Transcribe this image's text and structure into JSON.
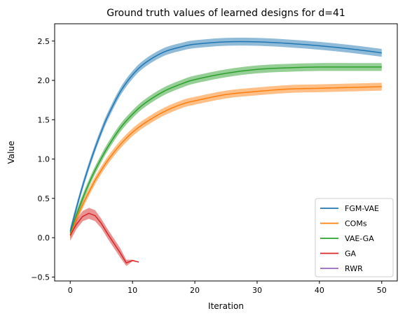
{
  "chart_data": {
    "type": "line",
    "title": "Ground truth values of learned designs for d=41",
    "xlabel": "Iteration",
    "ylabel": "Value",
    "xlim": [
      -2.5,
      52.5
    ],
    "ylim": [
      -0.55,
      2.72
    ],
    "xticks": [
      0,
      10,
      20,
      30,
      40,
      50
    ],
    "yticks": [
      -0.5,
      0.0,
      0.5,
      1.0,
      1.5,
      2.0,
      2.5
    ],
    "ytick_labels": [
      "−0.5",
      "0.0",
      "0.5",
      "1.0",
      "1.5",
      "2.0",
      "2.5"
    ],
    "legend_position": "lower-right",
    "grid": false,
    "series": [
      {
        "name": "FGM-VAE",
        "color": "#1f77b4",
        "x": [
          0,
          1,
          2,
          3,
          4,
          5,
          6,
          8,
          10,
          12,
          15,
          18,
          20,
          25,
          30,
          35,
          40,
          45,
          50
        ],
        "values": [
          0.08,
          0.38,
          0.66,
          0.91,
          1.14,
          1.35,
          1.54,
          1.85,
          2.07,
          2.22,
          2.36,
          2.43,
          2.46,
          2.49,
          2.49,
          2.47,
          2.44,
          2.4,
          2.35
        ],
        "band": 0.05
      },
      {
        "name": "COMs",
        "color": "#ff7f0e",
        "x": [
          0,
          1,
          2,
          3,
          4,
          5,
          6,
          8,
          10,
          12,
          15,
          18,
          20,
          25,
          30,
          35,
          40,
          45,
          50
        ],
        "values": [
          0.04,
          0.24,
          0.42,
          0.58,
          0.73,
          0.86,
          0.98,
          1.18,
          1.34,
          1.46,
          1.6,
          1.7,
          1.74,
          1.82,
          1.86,
          1.89,
          1.9,
          1.91,
          1.92
        ],
        "band": 0.05
      },
      {
        "name": "VAE-GA",
        "color": "#2ca02c",
        "x": [
          0,
          1,
          2,
          3,
          4,
          5,
          6,
          8,
          10,
          12,
          15,
          18,
          20,
          25,
          30,
          35,
          40,
          45,
          50
        ],
        "values": [
          0.06,
          0.29,
          0.5,
          0.69,
          0.86,
          1.01,
          1.15,
          1.39,
          1.57,
          1.71,
          1.86,
          1.96,
          2.01,
          2.09,
          2.14,
          2.16,
          2.17,
          2.17,
          2.17
        ],
        "band": 0.05
      },
      {
        "name": "GA",
        "color": "#d62728",
        "x": [
          0,
          1,
          2,
          3,
          4,
          5,
          6,
          7,
          8,
          9,
          10,
          11
        ],
        "values": [
          0.03,
          0.17,
          0.27,
          0.31,
          0.28,
          0.18,
          0.05,
          -0.07,
          -0.19,
          -0.32,
          -0.29,
          -0.31
        ],
        "band_upper": [
          0.1,
          0.23,
          0.34,
          0.38,
          0.35,
          0.24,
          0.11,
          -0.01,
          -0.13,
          -0.28,
          -0.28,
          -0.31
        ],
        "band_lower": [
          -0.04,
          0.11,
          0.21,
          0.24,
          0.21,
          0.12,
          -0.01,
          -0.13,
          -0.25,
          -0.36,
          -0.3,
          -0.31
        ]
      },
      {
        "name": "RWR",
        "color": "#9467bd",
        "x": [],
        "values": []
      }
    ]
  }
}
